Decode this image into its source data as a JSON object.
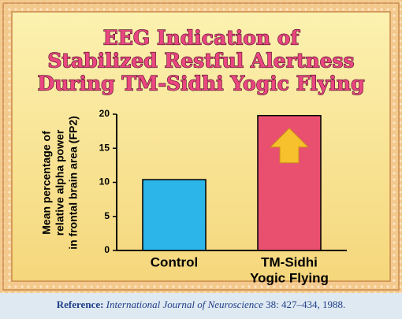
{
  "chart_data": {
    "type": "bar",
    "title": [
      "EEG Indication of",
      "Stabilized Restful Alertness",
      "During TM-Sidhi Yogic Flying"
    ],
    "ylabel": [
      "Mean percentage of",
      "relative alpha power",
      "in frontal brain area (FP2)"
    ],
    "categories": [
      [
        "Control"
      ],
      [
        "TM-Sidhi",
        "Yogic Flying"
      ]
    ],
    "values": [
      10.4,
      19.8
    ],
    "colors": [
      "#2bb5e8",
      "#e94f6f"
    ],
    "ylim": [
      0,
      20
    ],
    "yticks": [
      0,
      5,
      10,
      15,
      20
    ],
    "grid": false
  },
  "reference": {
    "label": "Reference:",
    "journal": "International Journal of Neuroscience",
    "details": " 38: 427–434, 1988."
  }
}
